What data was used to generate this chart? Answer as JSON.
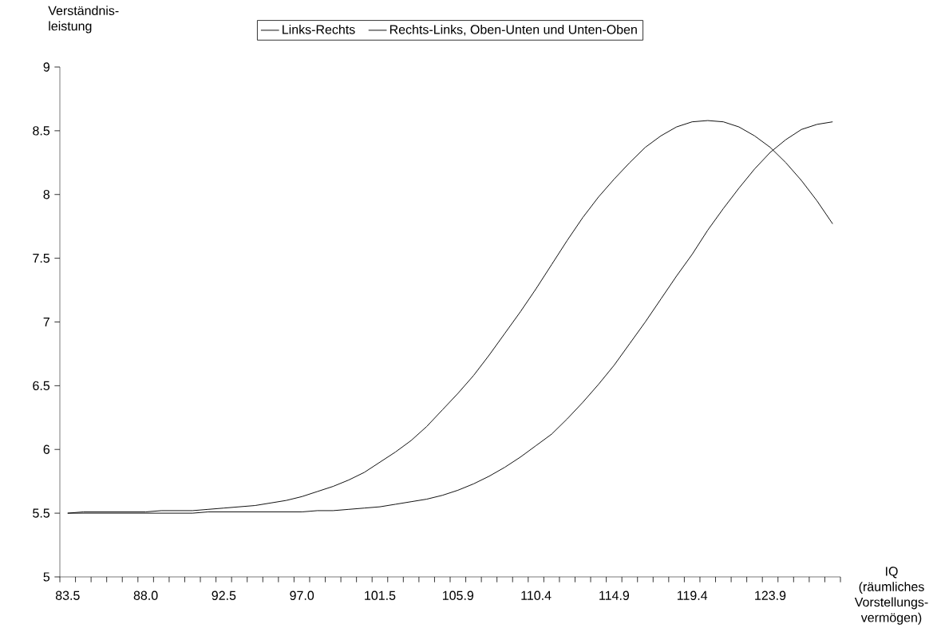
{
  "chart_data": {
    "type": "line",
    "ylabel": "Verständnis-leistung",
    "xlabel": "IQ (räumliches Vorstellungs-vermögen)",
    "categories": [
      "83.5",
      null,
      null,
      null,
      null,
      "88.0",
      null,
      null,
      null,
      null,
      "92.5",
      null,
      null,
      null,
      null,
      "97.0",
      null,
      null,
      null,
      null,
      "101.5",
      null,
      null,
      null,
      null,
      "105.9",
      null,
      null,
      null,
      null,
      "110.4",
      null,
      null,
      null,
      null,
      "114.9",
      null,
      null,
      null,
      null,
      "119.4",
      null,
      null,
      null,
      null,
      "123.9",
      null,
      null,
      null,
      null
    ],
    "series": [
      {
        "name": "Links-Rechts",
        "color": "#000000",
        "values": [
          5.5,
          5.51,
          5.51,
          5.51,
          5.51,
          5.51,
          5.52,
          5.52,
          5.52,
          5.53,
          5.54,
          5.55,
          5.56,
          5.58,
          5.6,
          5.63,
          5.67,
          5.71,
          5.76,
          5.82,
          5.9,
          5.98,
          6.07,
          6.18,
          6.31,
          6.44,
          6.58,
          6.74,
          6.91,
          7.08,
          7.26,
          7.45,
          7.64,
          7.82,
          7.98,
          8.12,
          8.25,
          8.37,
          8.46,
          8.53,
          8.57,
          8.58,
          8.57,
          8.53,
          8.46,
          8.37,
          8.25,
          8.11,
          7.95,
          7.77
        ]
      },
      {
        "name": "Rechts-Links, Oben-Unten und Unten-Oben",
        "color": "#000000",
        "values": [
          5.5,
          5.5,
          5.5,
          5.5,
          5.5,
          5.5,
          5.5,
          5.5,
          5.5,
          5.51,
          5.51,
          5.51,
          5.51,
          5.51,
          5.51,
          5.51,
          5.52,
          5.52,
          5.53,
          5.54,
          5.55,
          5.57,
          5.59,
          5.61,
          5.64,
          5.68,
          5.73,
          5.79,
          5.86,
          5.94,
          6.03,
          6.12,
          6.24,
          6.37,
          6.51,
          6.66,
          6.83,
          7.0,
          7.18,
          7.36,
          7.53,
          7.72,
          7.89,
          8.05,
          8.2,
          8.33,
          8.43,
          8.51,
          8.55,
          8.57
        ]
      }
    ],
    "ylim": [
      5,
      9
    ],
    "yticks": [
      5,
      5.5,
      6,
      6.5,
      7,
      7.5,
      8,
      8.5,
      9
    ],
    "legend": "top"
  }
}
